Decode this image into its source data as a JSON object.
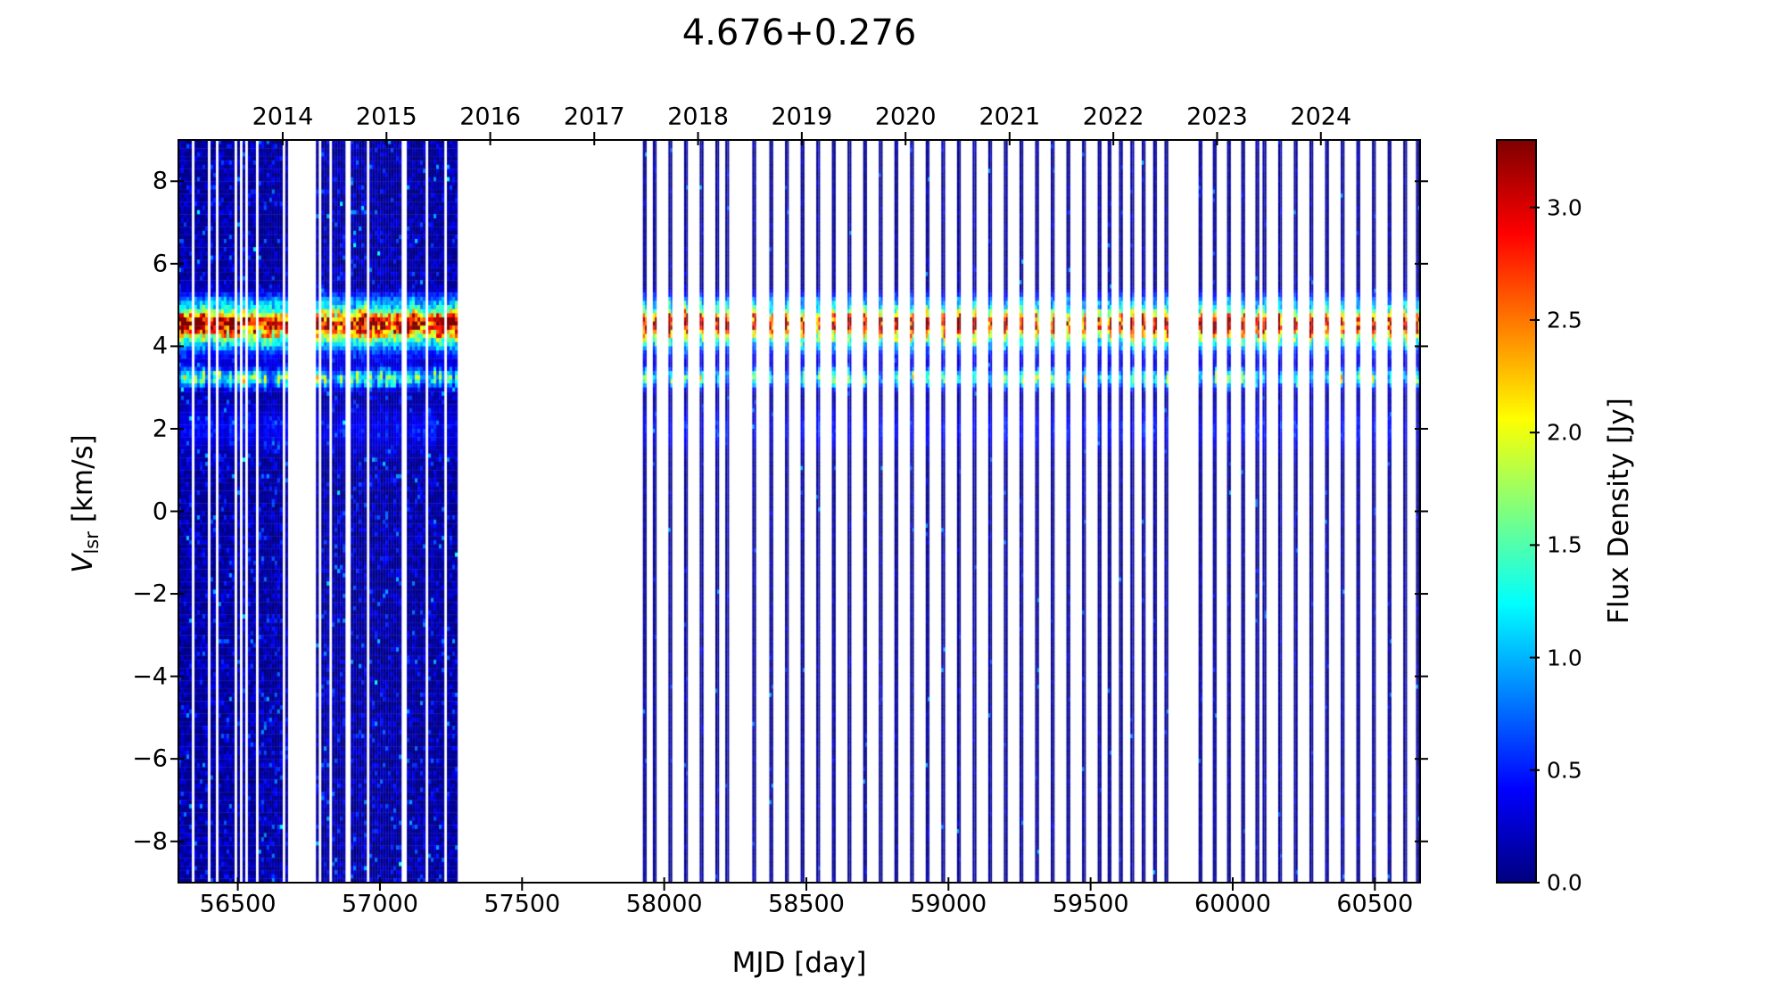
{
  "chart_data": {
    "type": "heatmap",
    "title": "4.676+0.276",
    "xlabel": "MJD [day]",
    "ylabel": {
      "symbol": "V",
      "subscript": "lsr",
      "units": "[km/s]"
    },
    "colorbar_label": "Flux Density [Jy]",
    "colormap": "jet",
    "grid": false,
    "x_range_mjd": [
      56291,
      60659
    ],
    "y_range_kms": [
      -9.0,
      9.0
    ],
    "flux_range_jy": [
      0.0,
      3.3
    ],
    "x_ticks": [
      56500,
      57000,
      57500,
      58000,
      58500,
      59000,
      59500,
      60000,
      60500
    ],
    "y_ticks": [
      8,
      6,
      4,
      2,
      0,
      -2,
      -4,
      -6,
      -8
    ],
    "top_axis_years": [
      {
        "label": "2014",
        "mjd": 56658
      },
      {
        "label": "2015",
        "mjd": 57023
      },
      {
        "label": "2016",
        "mjd": 57388
      },
      {
        "label": "2017",
        "mjd": 57754
      },
      {
        "label": "2018",
        "mjd": 58119
      },
      {
        "label": "2019",
        "mjd": 58484
      },
      {
        "label": "2020",
        "mjd": 58849
      },
      {
        "label": "2021",
        "mjd": 59215
      },
      {
        "label": "2022",
        "mjd": 59580
      },
      {
        "label": "2023",
        "mjd": 59945
      },
      {
        "label": "2024",
        "mjd": 60310
      }
    ],
    "colorbar_ticks": [
      "0.0",
      "0.5",
      "1.0",
      "1.5",
      "2.0",
      "2.5",
      "3.0"
    ],
    "spectral_features": [
      {
        "v_lsr_kms": 4.6,
        "sigma_kms": 0.22,
        "peak_jy_max": 3.3,
        "note": "primary maser feature, persistent red/orange core"
      },
      {
        "v_lsr_kms": 4.35,
        "sigma_kms": 0.38,
        "peak_jy_max": 1.8,
        "note": "broad yellow-green pedestal of primary band"
      },
      {
        "v_lsr_kms": 3.22,
        "sigma_kms": 0.16,
        "peak_jy_max": 2.3,
        "note": "secondary maser feature, cyan-yellow with orange patches"
      },
      {
        "v_lsr_kms": 5.12,
        "sigma_kms": 0.15,
        "peak_jy_max": 0.8,
        "note": "faint cyan fringe above primary band"
      },
      {
        "v_lsr_kms": 2.0,
        "sigma_kms": 0.4,
        "peak_jy_max": 0.6,
        "note": "weak blue-cyan enhancement"
      }
    ],
    "observing_epochs": {
      "dense_blocks_mjd": [
        {
          "mjd_start": 56291,
          "mjd_end": 56668
        },
        {
          "mjd_start": 56775,
          "mjd_end": 57272
        }
      ],
      "seasonal_gap_mjd": {
        "mjd_start": 57272,
        "mjd_end": 57925
      },
      "sparse_scans_mjd": [
        57925,
        57960,
        58015,
        58070,
        58125,
        58180,
        58215,
        58310,
        58370,
        58425,
        58480,
        58535,
        58590,
        58645,
        58700,
        58755,
        58810,
        58865,
        58920,
        58975,
        59030,
        59085,
        59140,
        59195,
        59250,
        59305,
        59360,
        59415,
        59470,
        59525,
        59560,
        59600,
        59640,
        59680,
        59720,
        59760,
        59880,
        59930,
        59980,
        60030,
        60080,
        60105,
        60160,
        60215,
        60270,
        60325,
        60380,
        60435,
        60490,
        60545,
        60600,
        60645
      ]
    },
    "colors": {
      "background": "#ffffff",
      "axes": "#000000",
      "text": "#000000",
      "cmap_low": "#000080",
      "cmap_high": "#800000"
    }
  }
}
